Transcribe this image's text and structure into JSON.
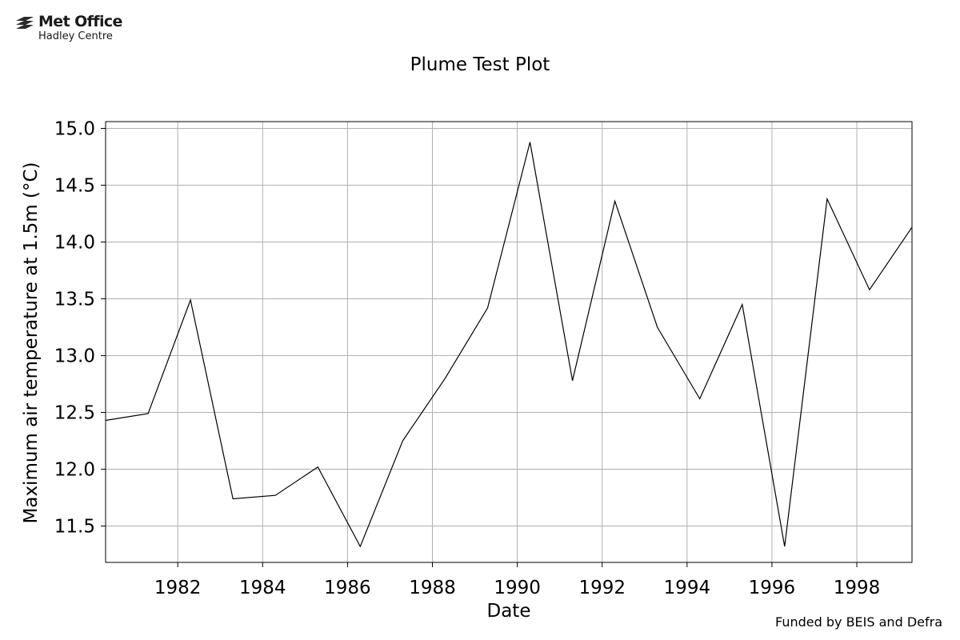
{
  "logo": {
    "line1": "Met Office",
    "line2": "Hadley Centre"
  },
  "footer": "Funded by BEIS and Defra",
  "colors": {
    "line": "#000000",
    "grid": "#b0b0b0",
    "axis": "#000000"
  },
  "chart_data": {
    "type": "line",
    "title": "Plume Test Plot",
    "xlabel": "Date",
    "ylabel": "Maximum air temperature at 1.5m (°C)",
    "xlim": [
      1980.3,
      1999.3
    ],
    "ylim": [
      11.18,
      15.06
    ],
    "x_ticks": [
      1982,
      1984,
      1986,
      1988,
      1990,
      1992,
      1994,
      1996,
      1998
    ],
    "y_ticks": [
      11.5,
      12.0,
      12.5,
      13.0,
      13.5,
      14.0,
      14.5,
      15.0
    ],
    "y_tick_labels": [
      "11.5",
      "12.0",
      "12.5",
      "13.0",
      "13.5",
      "14.0",
      "14.5",
      "15.0"
    ],
    "grid": true,
    "series": [
      {
        "x": [
          1980.3,
          1981.3,
          1982.3,
          1983.3,
          1984.3,
          1985.3,
          1986.3,
          1987.3,
          1988.3,
          1989.3,
          1990.3,
          1991.3,
          1992.3,
          1993.3,
          1994.3,
          1995.3,
          1996.3,
          1997.3,
          1998.3,
          1999.3
        ],
        "y": [
          12.43,
          12.49,
          13.49,
          11.74,
          11.77,
          12.02,
          11.32,
          12.25,
          12.8,
          13.42,
          14.88,
          12.78,
          14.36,
          13.25,
          12.62,
          13.45,
          11.32,
          14.38,
          13.58,
          14.13
        ]
      }
    ]
  }
}
